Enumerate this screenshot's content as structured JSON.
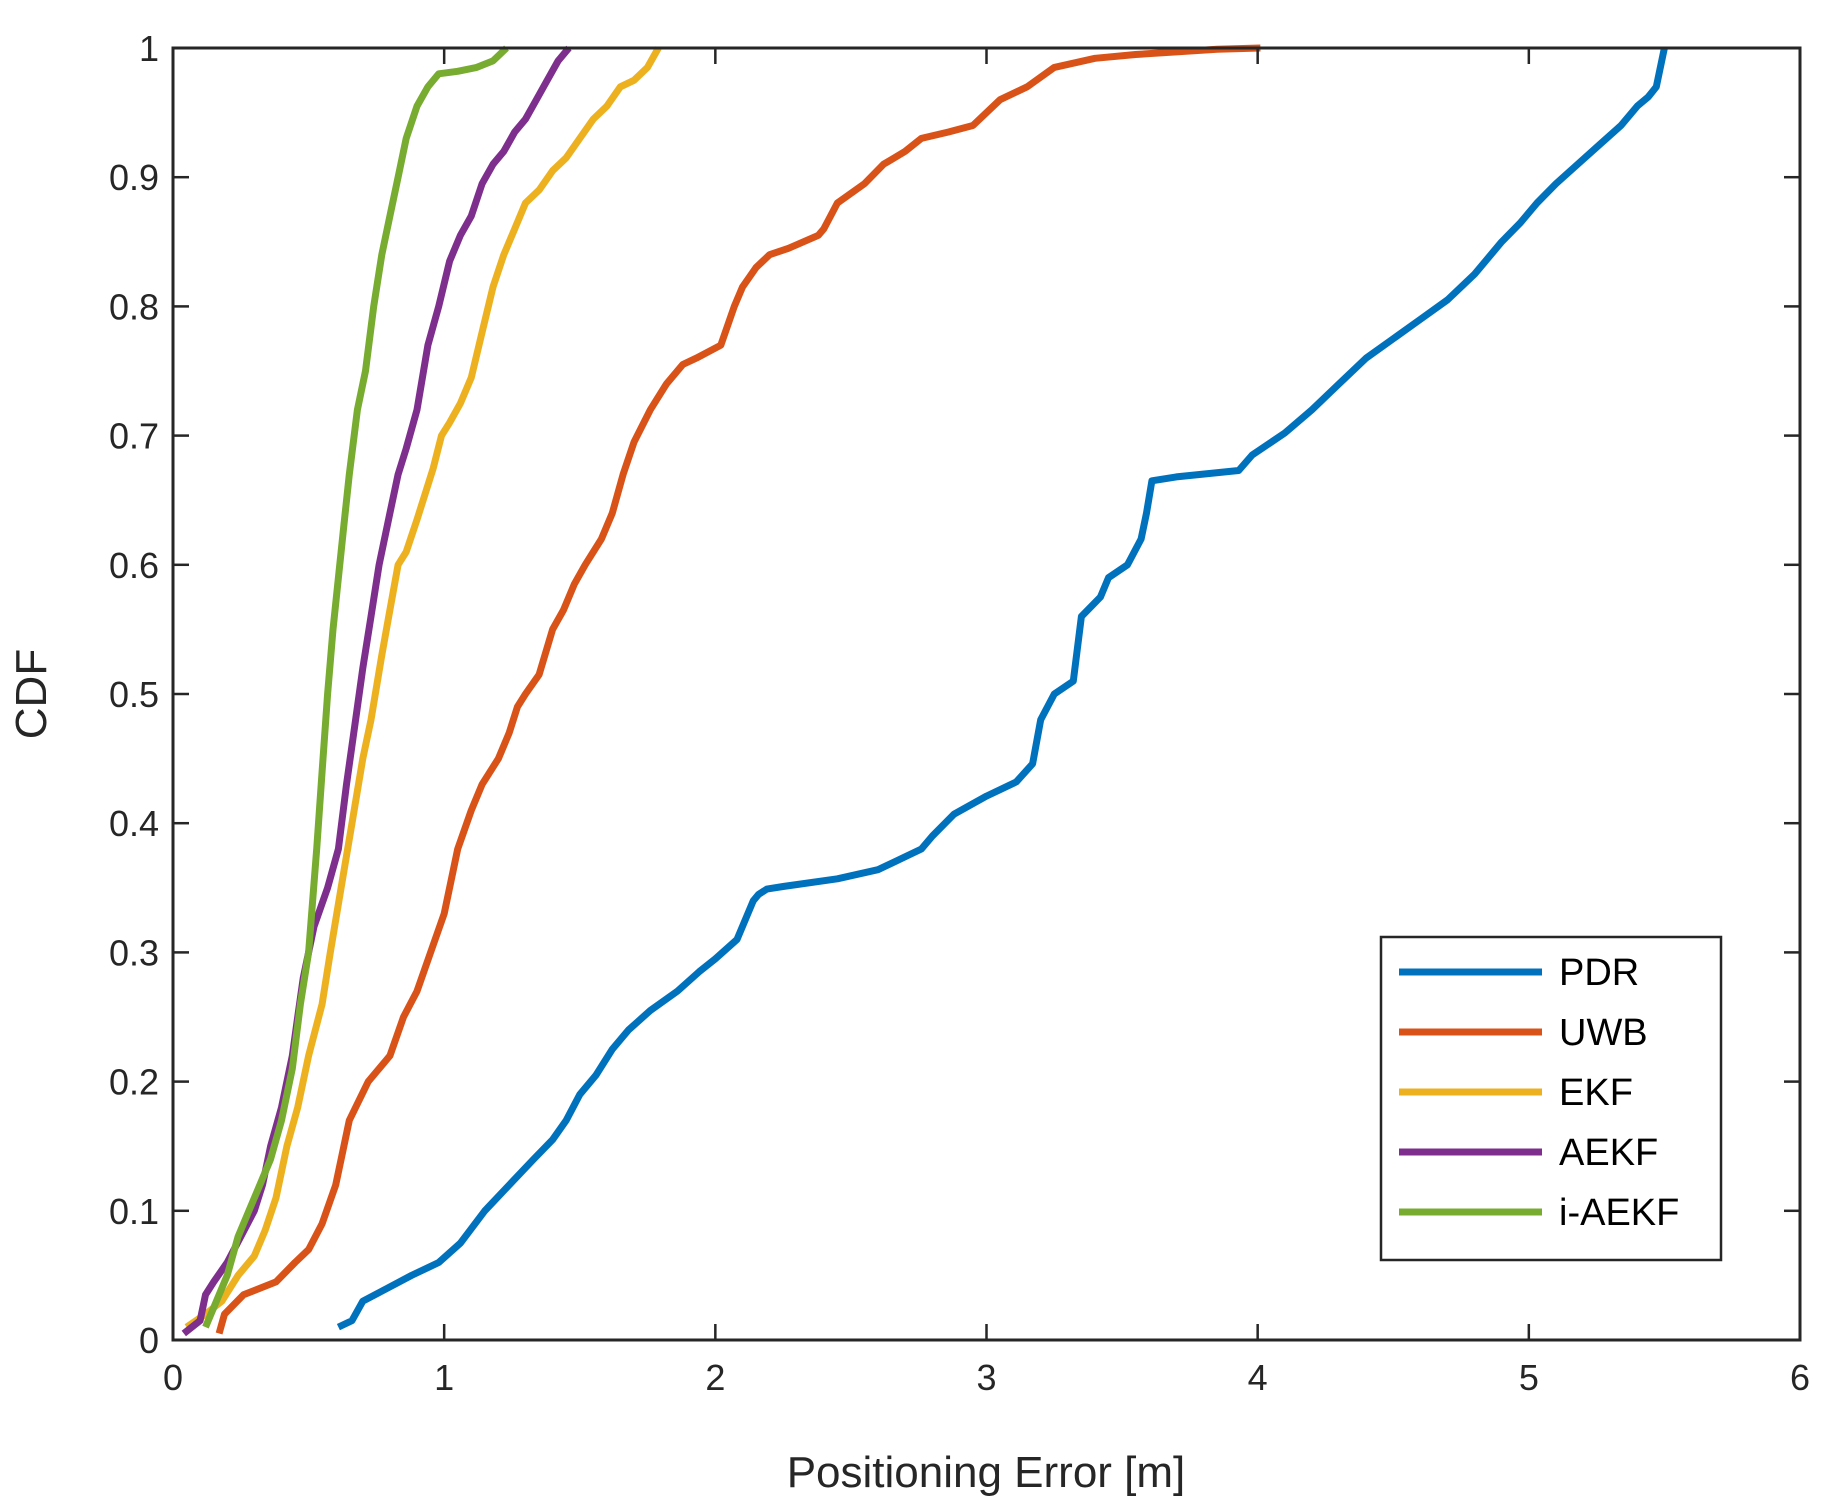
{
  "chart_data": {
    "type": "line",
    "title": "",
    "xlabel": "Positioning Error [m]",
    "ylabel": "CDF",
    "xlim": [
      0,
      6
    ],
    "ylim": [
      0,
      1
    ],
    "xticks": [
      "0",
      "1",
      "2",
      "3",
      "4",
      "5",
      "6"
    ],
    "yticks": [
      "0",
      "0.1",
      "0.2",
      "0.3",
      "0.4",
      "0.5",
      "0.6",
      "0.7",
      "0.8",
      "0.9",
      "1"
    ],
    "legend_position": "bottom-right",
    "series": [
      {
        "name": "PDR",
        "color": "#0072BD",
        "x": [
          0.61,
          0.66,
          0.7,
          0.79,
          0.88,
          0.98,
          1.06,
          1.15,
          1.24,
          1.33,
          1.4,
          1.45,
          1.5,
          1.56,
          1.62,
          1.68,
          1.76,
          1.86,
          1.94,
          2.0,
          2.08,
          2.14,
          2.16,
          2.19,
          2.25,
          2.45,
          2.6,
          2.76,
          2.8,
          2.88,
          3.0,
          3.11,
          3.17,
          3.2,
          3.25,
          3.32,
          3.35,
          3.42,
          3.45,
          3.52,
          3.57,
          3.59,
          3.61,
          3.7,
          3.93,
          3.98,
          4.1,
          4.2,
          4.3,
          4.4,
          4.5,
          4.6,
          4.7,
          4.8,
          4.9,
          4.97,
          5.03,
          5.1,
          5.18,
          5.26,
          5.34,
          5.4,
          5.44,
          5.47,
          5.5
        ],
        "y": [
          0.01,
          0.015,
          0.03,
          0.04,
          0.05,
          0.06,
          0.075,
          0.1,
          0.12,
          0.14,
          0.155,
          0.17,
          0.19,
          0.205,
          0.225,
          0.24,
          0.255,
          0.27,
          0.285,
          0.295,
          0.31,
          0.34,
          0.345,
          0.349,
          0.351,
          0.357,
          0.364,
          0.38,
          0.39,
          0.407,
          0.421,
          0.432,
          0.446,
          0.48,
          0.5,
          0.51,
          0.56,
          0.575,
          0.59,
          0.6,
          0.62,
          0.64,
          0.665,
          0.668,
          0.673,
          0.685,
          0.702,
          0.72,
          0.74,
          0.76,
          0.775,
          0.79,
          0.805,
          0.825,
          0.85,
          0.865,
          0.88,
          0.895,
          0.91,
          0.925,
          0.94,
          0.955,
          0.962,
          0.97,
          1.0
        ]
      },
      {
        "name": "UWB",
        "color": "#D95319",
        "x": [
          0.17,
          0.19,
          0.26,
          0.38,
          0.45,
          0.5,
          0.55,
          0.6,
          0.65,
          0.72,
          0.8,
          0.85,
          0.9,
          0.95,
          1.0,
          1.05,
          1.1,
          1.14,
          1.2,
          1.24,
          1.27,
          1.3,
          1.35,
          1.4,
          1.44,
          1.48,
          1.52,
          1.58,
          1.62,
          1.66,
          1.7,
          1.76,
          1.82,
          1.88,
          1.93,
          2.02,
          2.07,
          2.1,
          2.15,
          2.2,
          2.27,
          2.38,
          2.4,
          2.45,
          2.55,
          2.62,
          2.7,
          2.76,
          2.86,
          2.95,
          3.05,
          3.15,
          3.25,
          3.4,
          3.55,
          3.7,
          3.85,
          4.01
        ],
        "y": [
          0.005,
          0.02,
          0.035,
          0.045,
          0.06,
          0.07,
          0.09,
          0.12,
          0.17,
          0.2,
          0.22,
          0.25,
          0.27,
          0.3,
          0.33,
          0.38,
          0.41,
          0.43,
          0.45,
          0.47,
          0.49,
          0.5,
          0.515,
          0.55,
          0.565,
          0.585,
          0.6,
          0.62,
          0.64,
          0.67,
          0.695,
          0.72,
          0.74,
          0.755,
          0.76,
          0.77,
          0.8,
          0.815,
          0.83,
          0.84,
          0.845,
          0.855,
          0.86,
          0.88,
          0.895,
          0.91,
          0.92,
          0.93,
          0.935,
          0.94,
          0.96,
          0.97,
          0.985,
          0.992,
          0.995,
          0.997,
          0.999,
          1.0
        ]
      },
      {
        "name": "EKF",
        "color": "#EDB120",
        "x": [
          0.05,
          0.12,
          0.18,
          0.24,
          0.3,
          0.34,
          0.38,
          0.42,
          0.46,
          0.5,
          0.55,
          0.58,
          0.62,
          0.66,
          0.7,
          0.73,
          0.77,
          0.8,
          0.83,
          0.86,
          0.9,
          0.93,
          0.96,
          0.99,
          1.02,
          1.06,
          1.1,
          1.14,
          1.18,
          1.22,
          1.26,
          1.3,
          1.35,
          1.4,
          1.45,
          1.5,
          1.55,
          1.6,
          1.65,
          1.7,
          1.75,
          1.79
        ],
        "y": [
          0.01,
          0.02,
          0.03,
          0.05,
          0.065,
          0.085,
          0.11,
          0.15,
          0.18,
          0.22,
          0.26,
          0.3,
          0.35,
          0.4,
          0.45,
          0.48,
          0.53,
          0.565,
          0.6,
          0.61,
          0.635,
          0.655,
          0.675,
          0.7,
          0.71,
          0.725,
          0.745,
          0.78,
          0.815,
          0.84,
          0.86,
          0.88,
          0.89,
          0.905,
          0.915,
          0.93,
          0.945,
          0.955,
          0.97,
          0.975,
          0.985,
          1.0
        ]
      },
      {
        "name": "AEKF",
        "color": "#7E2F8E",
        "x": [
          0.04,
          0.1,
          0.12,
          0.15,
          0.2,
          0.25,
          0.3,
          0.33,
          0.36,
          0.4,
          0.44,
          0.46,
          0.48,
          0.52,
          0.57,
          0.61,
          0.64,
          0.67,
          0.7,
          0.73,
          0.76,
          0.8,
          0.83,
          0.86,
          0.9,
          0.94,
          0.98,
          1.02,
          1.06,
          1.1,
          1.14,
          1.18,
          1.22,
          1.26,
          1.3,
          1.34,
          1.38,
          1.42,
          1.46
        ],
        "y": [
          0.005,
          0.015,
          0.035,
          0.045,
          0.06,
          0.08,
          0.1,
          0.12,
          0.15,
          0.18,
          0.22,
          0.25,
          0.28,
          0.32,
          0.35,
          0.38,
          0.43,
          0.475,
          0.52,
          0.56,
          0.6,
          0.64,
          0.67,
          0.69,
          0.72,
          0.77,
          0.8,
          0.835,
          0.855,
          0.87,
          0.895,
          0.91,
          0.92,
          0.935,
          0.945,
          0.96,
          0.975,
          0.99,
          1.0
        ]
      },
      {
        "name": "i-AEKF",
        "color": "#77AC30",
        "x": [
          0.12,
          0.16,
          0.2,
          0.24,
          0.28,
          0.32,
          0.36,
          0.4,
          0.44,
          0.47,
          0.5,
          0.53,
          0.55,
          0.57,
          0.59,
          0.61,
          0.63,
          0.65,
          0.68,
          0.71,
          0.74,
          0.77,
          0.8,
          0.83,
          0.86,
          0.9,
          0.94,
          0.98,
          1.05,
          1.12,
          1.18,
          1.23
        ],
        "y": [
          0.01,
          0.03,
          0.05,
          0.08,
          0.1,
          0.12,
          0.14,
          0.17,
          0.21,
          0.26,
          0.3,
          0.38,
          0.44,
          0.5,
          0.55,
          0.59,
          0.63,
          0.67,
          0.72,
          0.75,
          0.8,
          0.84,
          0.87,
          0.9,
          0.93,
          0.955,
          0.97,
          0.98,
          0.982,
          0.985,
          0.99,
          1.0
        ]
      }
    ]
  }
}
